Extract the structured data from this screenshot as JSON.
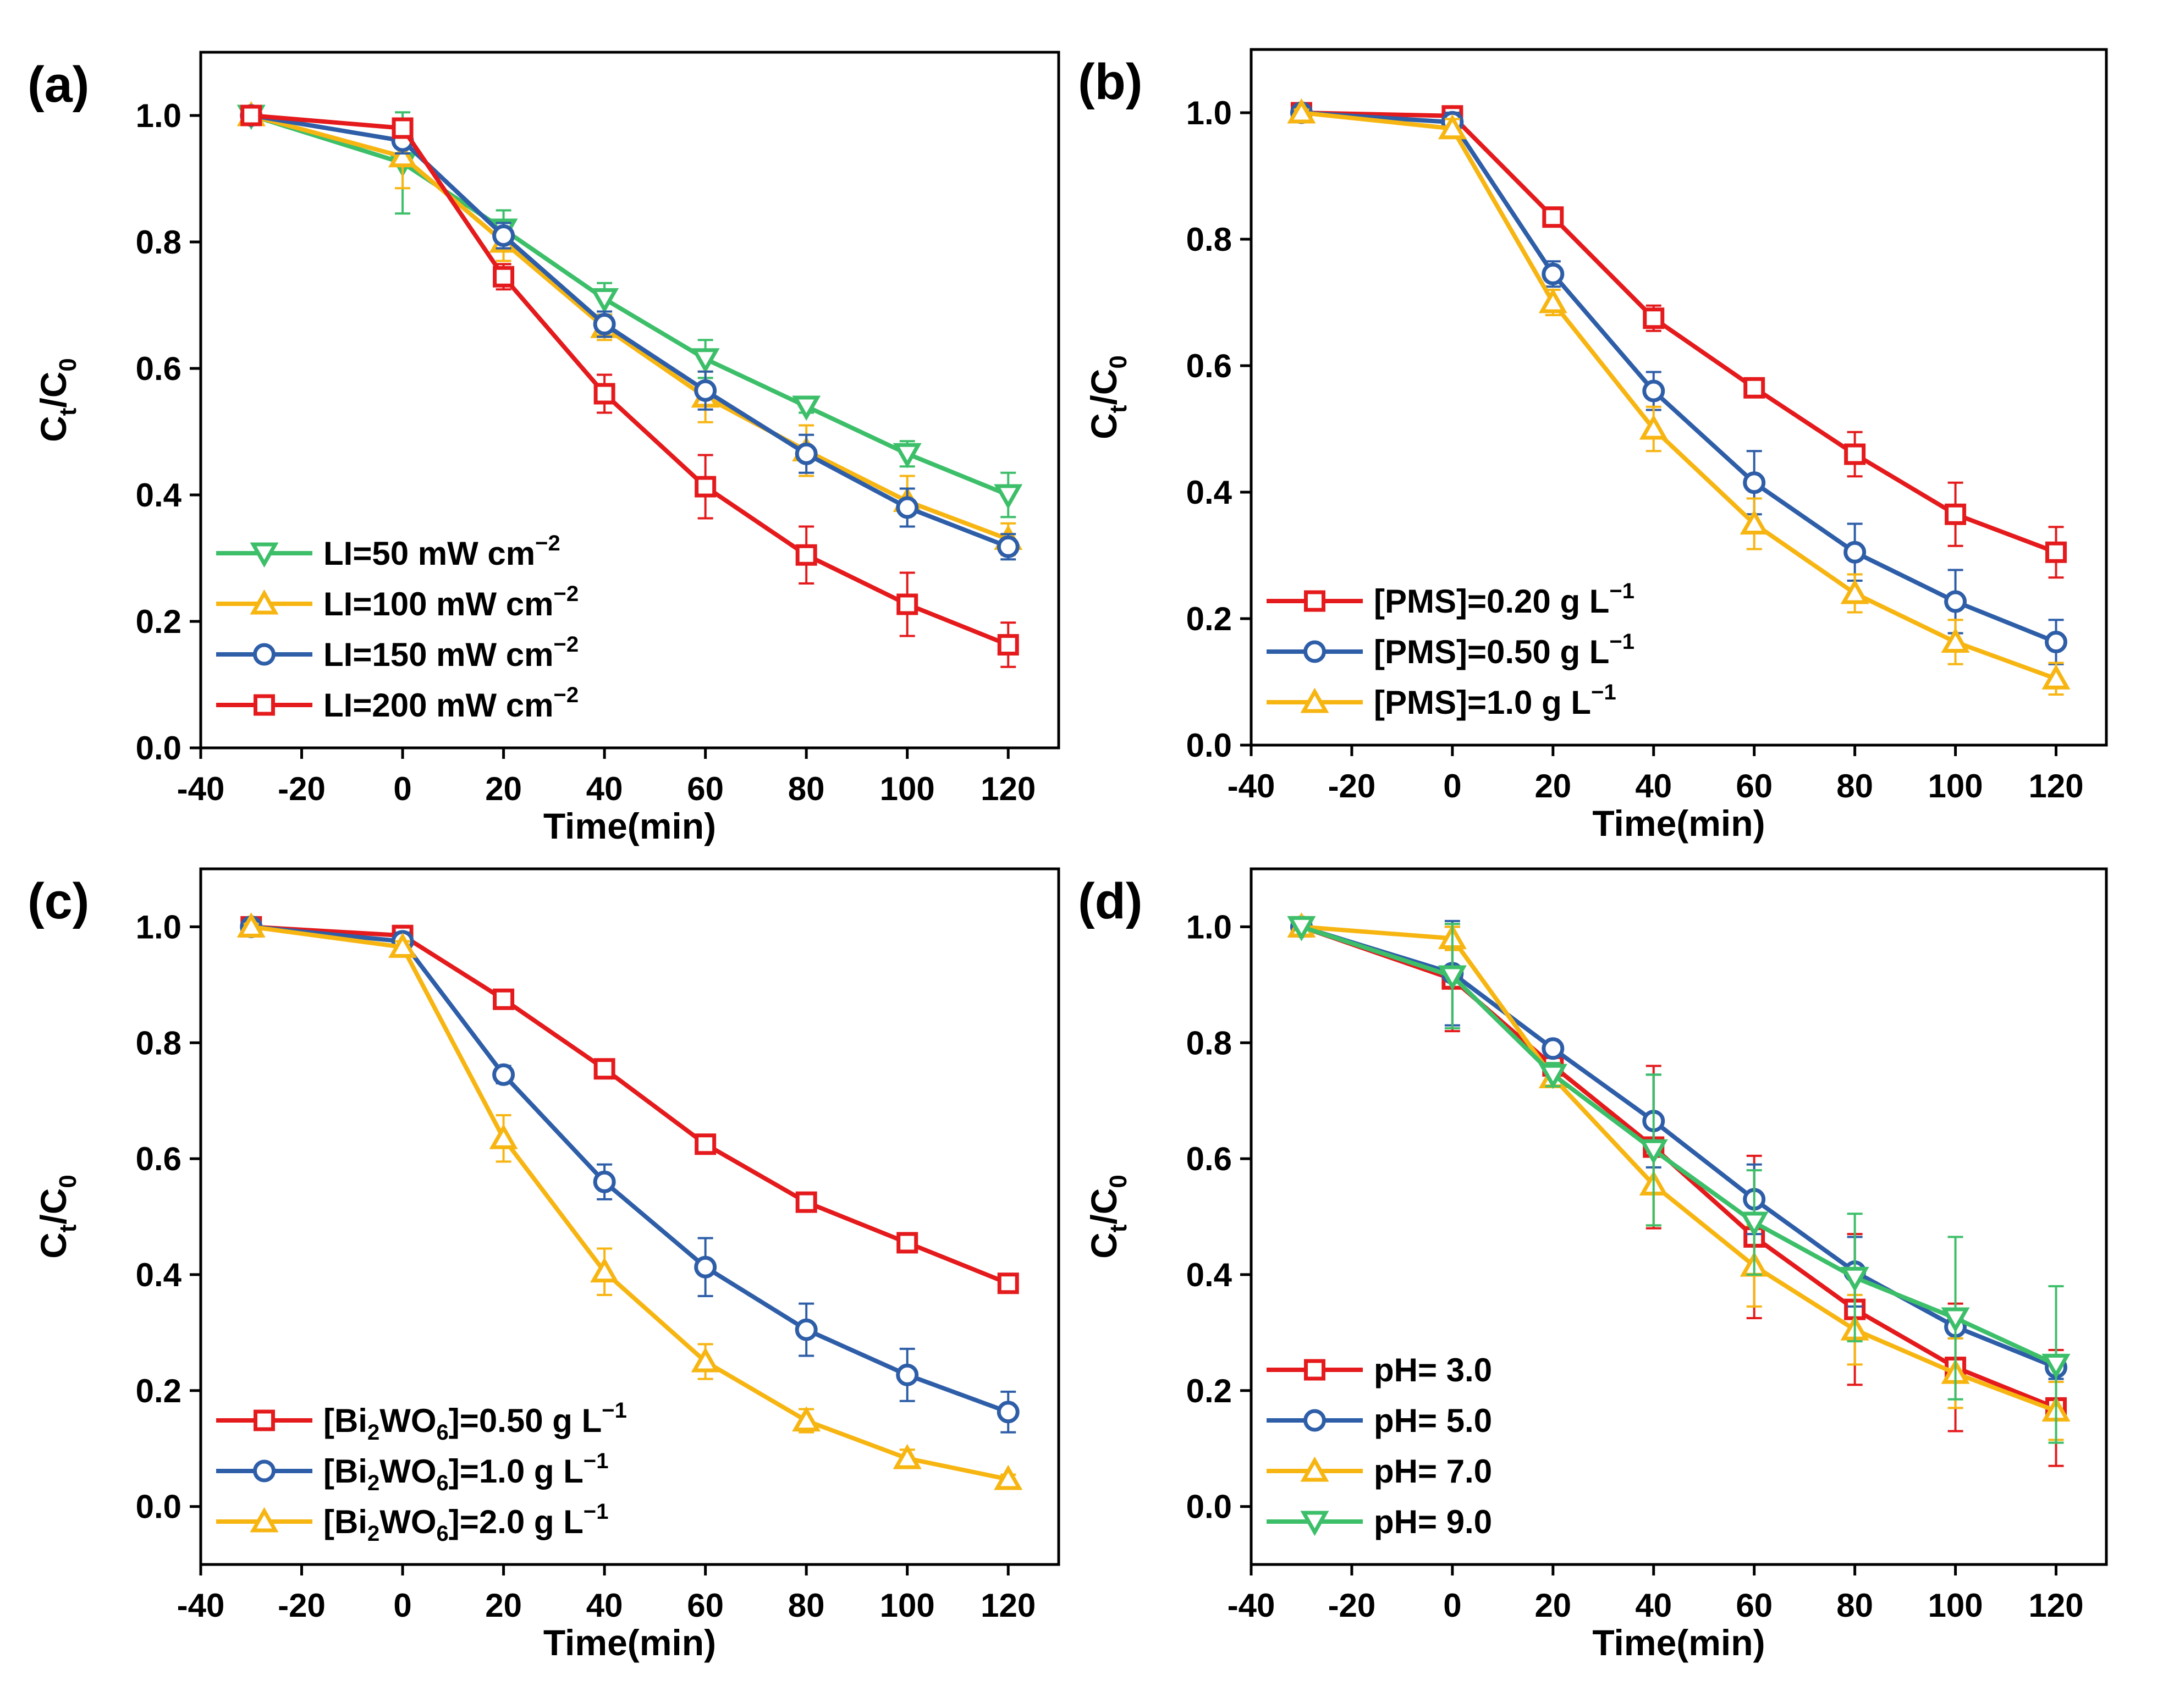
{
  "figure": {
    "panels": [
      {
        "panel_label": "(a)",
        "legend_position": "bottom-left",
        "chart_data": {
          "type": "line",
          "title": "",
          "xlabel": "Time(min)",
          "ylabel": "Ct/C0",
          "ylabel_main": "C",
          "ylabel_sub1": "t",
          "ylabel_sep": "/C",
          "ylabel_sub2": "0",
          "xlim": [
            -40,
            130
          ],
          "ylim": [
            0.0,
            1.1
          ],
          "xticks": [
            -40,
            -20,
            0,
            20,
            40,
            60,
            80,
            100,
            120
          ],
          "xtick_labels": [
            "-40",
            "-20",
            "0",
            "20",
            "40",
            "60",
            "80",
            "100",
            "120"
          ],
          "yticks": [
            0.0,
            0.2,
            0.4,
            0.6,
            0.8,
            1.0
          ],
          "ytick_labels": [
            "0.0",
            "0.2",
            "0.4",
            "0.6",
            "0.8",
            "1.0"
          ],
          "x": [
            -30,
            0,
            20,
            40,
            60,
            80,
            100,
            120
          ],
          "series": [
            {
              "name": "LI=50 mW cm−2",
              "label_main": "LI=50 mW cm",
              "label_sup": "−2",
              "color": "#3dbf6a",
              "marker": "triangle-down",
              "values": [
                1.0,
                0.925,
                0.82,
                0.71,
                0.615,
                0.54,
                0.465,
                0.4
              ],
              "errors": [
                0.01,
                0.08,
                0.03,
                0.025,
                0.03,
                0.01,
                0.02,
                0.035
              ]
            },
            {
              "name": "LI=100 mW cm−2",
              "label_main": "LI=100 mW cm",
              "label_sup": "−2",
              "color": "#f7b512",
              "marker": "triangle-up",
              "values": [
                1.0,
                0.935,
                0.8,
                0.665,
                0.555,
                0.47,
                0.39,
                0.33
              ],
              "errors": [
                0.01,
                0.05,
                0.03,
                0.02,
                0.04,
                0.04,
                0.04,
                0.025
              ]
            },
            {
              "name": "LI=150 mW cm−2",
              "label_main": "LI=150 mW cm",
              "label_sup": "−2",
              "color": "#2e5ea8",
              "marker": "circle",
              "values": [
                1.0,
                0.96,
                0.81,
                0.67,
                0.565,
                0.465,
                0.38,
                0.318
              ],
              "errors": [
                0.01,
                0.02,
                0.02,
                0.02,
                0.03,
                0.03,
                0.03,
                0.02
              ]
            },
            {
              "name": "LI=200 mW cm−2",
              "label_main": "LI=200 mW cm",
              "label_sup": "−2",
              "color": "#e41a1c",
              "marker": "square",
              "values": [
                1.0,
                0.98,
                0.745,
                0.56,
                0.413,
                0.305,
                0.227,
                0.163
              ],
              "errors": [
                0.005,
                0.015,
                0.02,
                0.03,
                0.05,
                0.045,
                0.05,
                0.035
              ]
            }
          ]
        }
      },
      {
        "panel_label": "(b)",
        "legend_position": "bottom-left",
        "chart_data": {
          "type": "line",
          "title": "",
          "xlabel": "Time(min)",
          "ylabel": "Ct/C0",
          "ylabel_main": "C",
          "ylabel_sub1": "t",
          "ylabel_sep": "/C",
          "ylabel_sub2": "0",
          "xlim": [
            -40,
            130
          ],
          "ylim": [
            0.0,
            1.1
          ],
          "xticks": [
            -40,
            -20,
            0,
            20,
            40,
            60,
            80,
            100,
            120
          ],
          "xtick_labels": [
            "-40",
            "-20",
            "0",
            "20",
            "40",
            "60",
            "80",
            "100",
            "120"
          ],
          "yticks": [
            0.0,
            0.2,
            0.4,
            0.6,
            0.8,
            1.0
          ],
          "ytick_labels": [
            "0.0",
            "0.2",
            "0.4",
            "0.6",
            "0.8",
            "1.0"
          ],
          "x": [
            -30,
            0,
            20,
            40,
            60,
            80,
            100,
            120
          ],
          "series": [
            {
              "name": "[PMS]=0.20 g L−1",
              "label_main": "[PMS]=0.20 g L",
              "label_sup": "−1",
              "color": "#e41a1c",
              "marker": "square",
              "values": [
                1.0,
                0.995,
                0.835,
                0.675,
                0.565,
                0.46,
                0.365,
                0.305
              ],
              "errors": [
                0.005,
                0.01,
                0.01,
                0.02,
                0.01,
                0.035,
                0.05,
                0.04
              ]
            },
            {
              "name": "[PMS]=0.50 g L−1",
              "label_main": "[PMS]=0.50 g L",
              "label_sup": "−1",
              "color": "#2e5ea8",
              "marker": "circle",
              "values": [
                1.0,
                0.985,
                0.745,
                0.56,
                0.415,
                0.305,
                0.227,
                0.163
              ],
              "errors": [
                0.005,
                0.015,
                0.02,
                0.03,
                0.05,
                0.045,
                0.05,
                0.035
              ]
            },
            {
              "name": "[PMS]=1.0 g L−1",
              "label_main": "[PMS]=1.0 g L",
              "label_sup": "−1",
              "color": "#f7b512",
              "marker": "triangle-up",
              "values": [
                1.0,
                0.975,
                0.7,
                0.5,
                0.35,
                0.24,
                0.163,
                0.105
              ],
              "errors": [
                0.005,
                0.015,
                0.02,
                0.035,
                0.04,
                0.03,
                0.035,
                0.025
              ]
            }
          ]
        }
      },
      {
        "panel_label": "(c)",
        "legend_position": "bottom-left",
        "chart_data": {
          "type": "line",
          "title": "",
          "xlabel": "Time(min)",
          "ylabel": "Ct/C0",
          "ylabel_main": "C",
          "ylabel_sub1": "t",
          "ylabel_sep": "/C",
          "ylabel_sub2": "0",
          "xlim": [
            -40,
            130
          ],
          "ylim": [
            -0.1,
            1.1
          ],
          "xticks": [
            -40,
            -20,
            0,
            20,
            40,
            60,
            80,
            100,
            120
          ],
          "xtick_labels": [
            "-40",
            "-20",
            "0",
            "20",
            "40",
            "60",
            "80",
            "100",
            "120"
          ],
          "yticks": [
            0.0,
            0.2,
            0.4,
            0.6,
            0.8,
            1.0
          ],
          "ytick_labels": [
            "0.0",
            "0.2",
            "0.4",
            "0.6",
            "0.8",
            "1.0"
          ],
          "x": [
            -30,
            0,
            20,
            40,
            60,
            80,
            100,
            120
          ],
          "series": [
            {
              "name": "[Bi2WO6]=0.50 g L−1",
              "label_pre": "[Bi",
              "label_sub1": "2",
              "label_mid": "WO",
              "label_sub2": "6",
              "label_post": "]=0.50 g L",
              "label_sup": "−1",
              "color": "#e41a1c",
              "marker": "square",
              "values": [
                1.0,
                0.985,
                0.875,
                0.755,
                0.625,
                0.525,
                0.455,
                0.385
              ],
              "errors": [
                0.005,
                0.01,
                0.01,
                0.01,
                0.01,
                0.01,
                0.01,
                0.012
              ]
            },
            {
              "name": "[Bi2WO6]=1.0 g L−1",
              "label_pre": "[Bi",
              "label_sub1": "2",
              "label_mid": "WO",
              "label_sub2": "6",
              "label_post": "]=1.0   g L",
              "label_sup": "−1",
              "color": "#2e5ea8",
              "marker": "circle",
              "values": [
                1.0,
                0.975,
                0.745,
                0.56,
                0.413,
                0.305,
                0.227,
                0.163
              ],
              "errors": [
                0.005,
                0.015,
                0.015,
                0.03,
                0.05,
                0.045,
                0.045,
                0.035
              ]
            },
            {
              "name": "[Bi2WO6]=2.0 g L−1",
              "label_pre": "[Bi",
              "label_sub1": "2",
              "label_mid": "WO",
              "label_sub2": "6",
              "label_post": "]=2.0   g L",
              "label_sup": "−1",
              "color": "#f7b512",
              "marker": "triangle-up",
              "values": [
                1.0,
                0.965,
                0.635,
                0.405,
                0.25,
                0.148,
                0.083,
                0.047
              ],
              "errors": [
                0.005,
                0.01,
                0.04,
                0.04,
                0.03,
                0.02,
                0.015,
                0.008
              ]
            }
          ]
        }
      },
      {
        "panel_label": "(d)",
        "legend_position": "bottom-left",
        "chart_data": {
          "type": "line",
          "title": "",
          "xlabel": "Time(min)",
          "ylabel": "Ct/C0",
          "ylabel_main": "C",
          "ylabel_sub1": "t",
          "ylabel_sep": "/C",
          "ylabel_sub2": "0",
          "xlim": [
            -40,
            130
          ],
          "ylim": [
            -0.1,
            1.1
          ],
          "xticks": [
            -40,
            -20,
            0,
            20,
            40,
            60,
            80,
            100,
            120
          ],
          "xtick_labels": [
            "-40",
            "-20",
            "0",
            "20",
            "40",
            "60",
            "80",
            "100",
            "120"
          ],
          "yticks": [
            0.0,
            0.2,
            0.4,
            0.6,
            0.8,
            1.0
          ],
          "ytick_labels": [
            "0.0",
            "0.2",
            "0.4",
            "0.6",
            "0.8",
            "1.0"
          ],
          "x": [
            -30,
            0,
            20,
            40,
            60,
            80,
            100,
            120
          ],
          "series": [
            {
              "name": "pH= 3.0",
              "label_main": "pH= 3.0",
              "label_sup": "",
              "color": "#e41a1c",
              "marker": "square",
              "values": [
                1.0,
                0.91,
                0.76,
                0.62,
                0.465,
                0.34,
                0.24,
                0.17
              ],
              "errors": [
                0.005,
                0.09,
                0.03,
                0.14,
                0.14,
                0.13,
                0.11,
                0.1
              ]
            },
            {
              "name": "pH= 5.0",
              "label_main": "pH= 5.0",
              "label_sup": "",
              "color": "#2e5ea8",
              "marker": "circle",
              "values": [
                1.0,
                0.92,
                0.79,
                0.665,
                0.53,
                0.405,
                0.31,
                0.24
              ],
              "errors": [
                0.005,
                0.09,
                0.01,
                0.08,
                0.06,
                0.06,
                0.02,
                0.02
              ]
            },
            {
              "name": "pH= 7.0",
              "label_main": "pH= 7.0",
              "label_sup": "",
              "color": "#f7b512",
              "marker": "triangle-up",
              "values": [
                1.0,
                0.98,
                0.74,
                0.555,
                0.415,
                0.305,
                0.23,
                0.165
              ],
              "errors": [
                0.005,
                0.02,
                0.01,
                0.07,
                0.07,
                0.06,
                0.06,
                0.05
              ]
            },
            {
              "name": "pH= 9.0",
              "label_main": "pH= 9.0",
              "label_sup": "",
              "color": "#3dbf6a",
              "marker": "triangle-down",
              "values": [
                1.0,
                0.915,
                0.745,
                0.615,
                0.49,
                0.395,
                0.325,
                0.245
              ],
              "errors": [
                0.005,
                0.09,
                0.02,
                0.13,
                0.09,
                0.11,
                0.14,
                0.135
              ]
            }
          ]
        }
      }
    ]
  }
}
